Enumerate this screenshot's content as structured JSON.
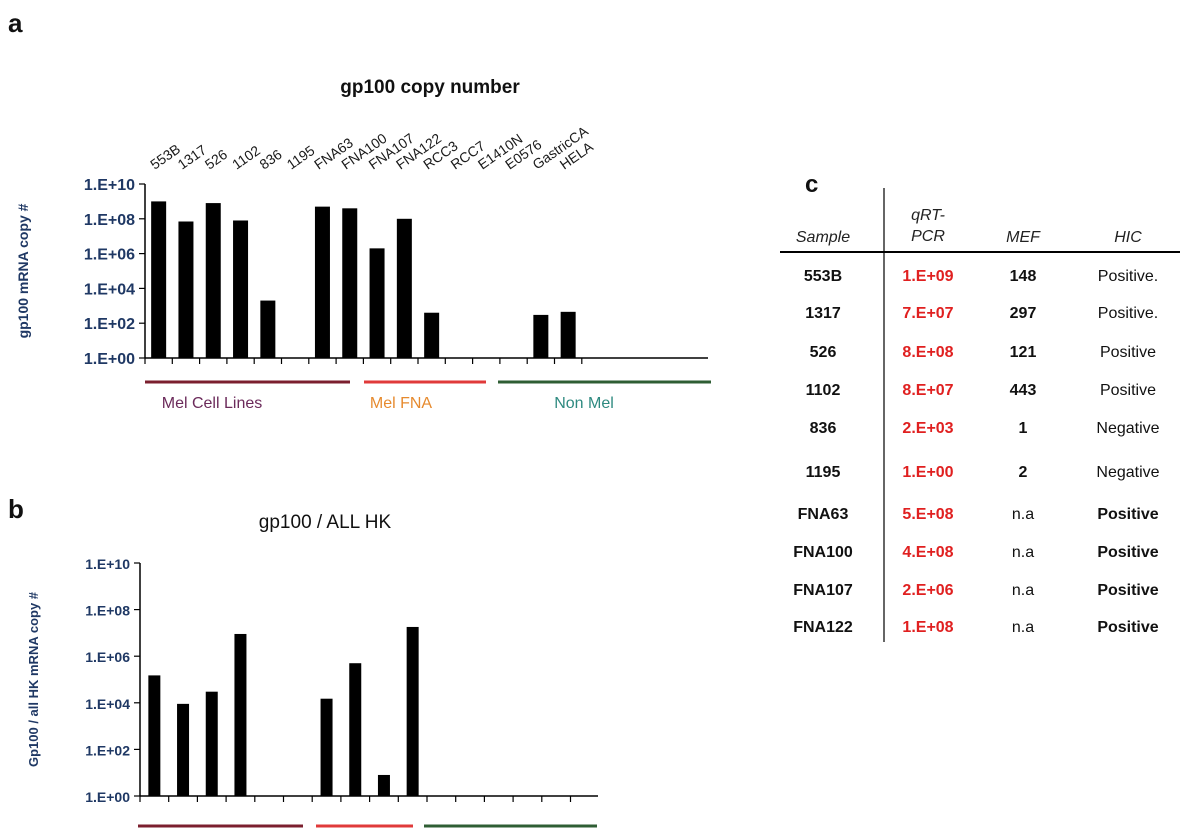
{
  "panels": {
    "a": "a",
    "b": "b",
    "c": "c"
  },
  "chart_data": [
    {
      "type": "bar",
      "title": "gp100 copy number",
      "ylabel": "gp100 mRNA copy #",
      "scale": "log10",
      "ylim": [
        1,
        10000000000
      ],
      "yticks": [
        "1.E+00",
        "1.E+02",
        "1.E+04",
        "1.E+06",
        "1.E+08",
        "1.E+10"
      ],
      "categories": [
        "553B",
        "1317",
        "526",
        "1102",
        "836",
        "1195",
        "FNA63",
        "FNA100",
        "FNA107",
        "FNA122",
        "RCC3",
        "RCC7",
        "E1410N",
        "E0576",
        "GastricCA",
        "HELA"
      ],
      "values": [
        1000000000,
        70000000,
        800000000,
        80000000,
        2000,
        1,
        500000000,
        400000000,
        2000000,
        100000000,
        400,
        0,
        0,
        0,
        300,
        450
      ],
      "groups": [
        {
          "label": "Mel Cell Lines",
          "color": "#7b1f2e",
          "text_color": "#6b2a5a"
        },
        {
          "label": "Mel FNA",
          "color": "#e03a3a",
          "text_color": "#e68a2e"
        },
        {
          "label": "Non Mel",
          "color": "#2f5e34",
          "text_color": "#2e8a80"
        }
      ],
      "grid": false
    },
    {
      "type": "bar",
      "title": "gp100 / ALL HK",
      "ylabel": "Gp100 / all HK mRNA copy #",
      "scale": "log10",
      "ylim": [
        1,
        10000000000
      ],
      "yticks": [
        "1.E+00",
        "1.E+02",
        "1.E+04",
        "1.E+06",
        "1.E+08",
        "1.E+10"
      ],
      "values": [
        150000,
        9000,
        30000,
        9000000,
        1,
        1,
        15000,
        500000,
        8,
        18000000,
        0,
        0,
        0,
        0,
        0,
        0
      ],
      "grid": false
    }
  ],
  "table": {
    "headers": [
      "Sample",
      "qRT-\nPCR",
      "MEF",
      "HIC"
    ],
    "rows": [
      {
        "sample": "553B",
        "qrt": "1.E+09",
        "mef": "148",
        "hic": "Positive.",
        "hic_bold": false
      },
      {
        "sample": "1317",
        "qrt": "7.E+07",
        "mef": "297",
        "hic": "Positive.",
        "hic_bold": false
      },
      {
        "sample": "526",
        "qrt": "8.E+08",
        "mef": "121",
        "hic": "Positive",
        "hic_bold": false
      },
      {
        "sample": "1102",
        "qrt": "8.E+07",
        "mef": "443",
        "hic": "Positive",
        "hic_bold": false
      },
      {
        "sample": "836",
        "qrt": "2.E+03",
        "mef": "1",
        "hic": "Negative",
        "hic_bold": false
      },
      {
        "sample": "1195",
        "qrt": "1.E+00",
        "mef": "2",
        "hic": "Negative",
        "hic_bold": false
      },
      {
        "sample": "FNA63",
        "qrt": "5.E+08",
        "mef": "n.a",
        "hic": "Positive",
        "hic_bold": true
      },
      {
        "sample": "FNA100",
        "qrt": "4.E+08",
        "mef": "n.a",
        "hic": "Positive",
        "hic_bold": true
      },
      {
        "sample": "FNA107",
        "qrt": "2.E+06",
        "mef": "n.a",
        "hic": "Positive",
        "hic_bold": true
      },
      {
        "sample": "FNA122",
        "qrt": "1.E+08",
        "mef": "n.a",
        "hic": "Positive",
        "hic_bold": true
      }
    ],
    "qrt_color": "#e02020"
  },
  "colors": {
    "axis_text": "#1f3864",
    "bar": "#000000"
  }
}
